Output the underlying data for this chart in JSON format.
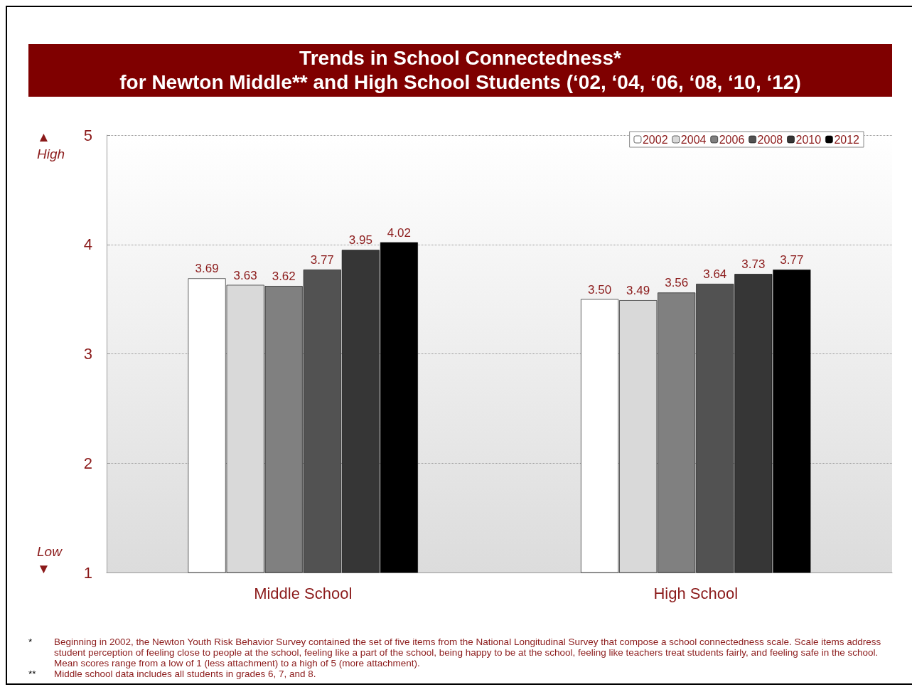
{
  "chart_data": {
    "type": "bar",
    "title": "Trends in School Connectedness*",
    "subtitle": "for Newton Middle** and High School Students (‘02, ‘04, ‘06, ‘08, ‘10, ‘12)",
    "categories": [
      "Middle School",
      "High School"
    ],
    "value_labels": [
      [
        "3.69",
        "3.50"
      ],
      [
        "3.63",
        "3.49"
      ],
      [
        "3.62",
        "3.56"
      ],
      [
        "3.77",
        "3.64"
      ],
      [
        "3.95",
        "3.73"
      ],
      [
        "4.02",
        "3.77"
      ]
    ],
    "series": [
      {
        "name": "2002",
        "color": "#ffffff",
        "values": [
          3.69,
          3.5
        ]
      },
      {
        "name": "2004",
        "color": "#d9d9d9",
        "values": [
          3.63,
          3.49
        ]
      },
      {
        "name": "2006",
        "color": "#808080",
        "values": [
          3.62,
          3.56
        ]
      },
      {
        "name": "2008",
        "color": "#525252",
        "values": [
          3.77,
          3.64
        ]
      },
      {
        "name": "2010",
        "color": "#363636",
        "values": [
          3.95,
          3.73
        ]
      },
      {
        "name": "2012",
        "color": "#000000",
        "values": [
          4.02,
          3.77
        ]
      }
    ],
    "ylim": [
      1,
      5
    ],
    "yticks": [
      1,
      2,
      3,
      4,
      5
    ],
    "grid": "y",
    "legend": "top right",
    "annotations": [
      "▲\nHigh",
      "Low\n▼",
      "*\tBeginning in 2002, the Newton Youth Risk Behavior Survey contained the set of five items from the National Longitudinal Survey that compose a school connectedness scale.  Scale items address student perception of feeling close to people at the school, feeling like a part of the school, being happy to be at the school, feeling like teachers treat students fairly, and feeling safe in the school.  Mean scores range from a low of 1 (less attachment) to a high of 5 (more attachment).",
      "**\tMiddle school data includes all students in grades 6, 7, and 8."
    ]
  }
}
